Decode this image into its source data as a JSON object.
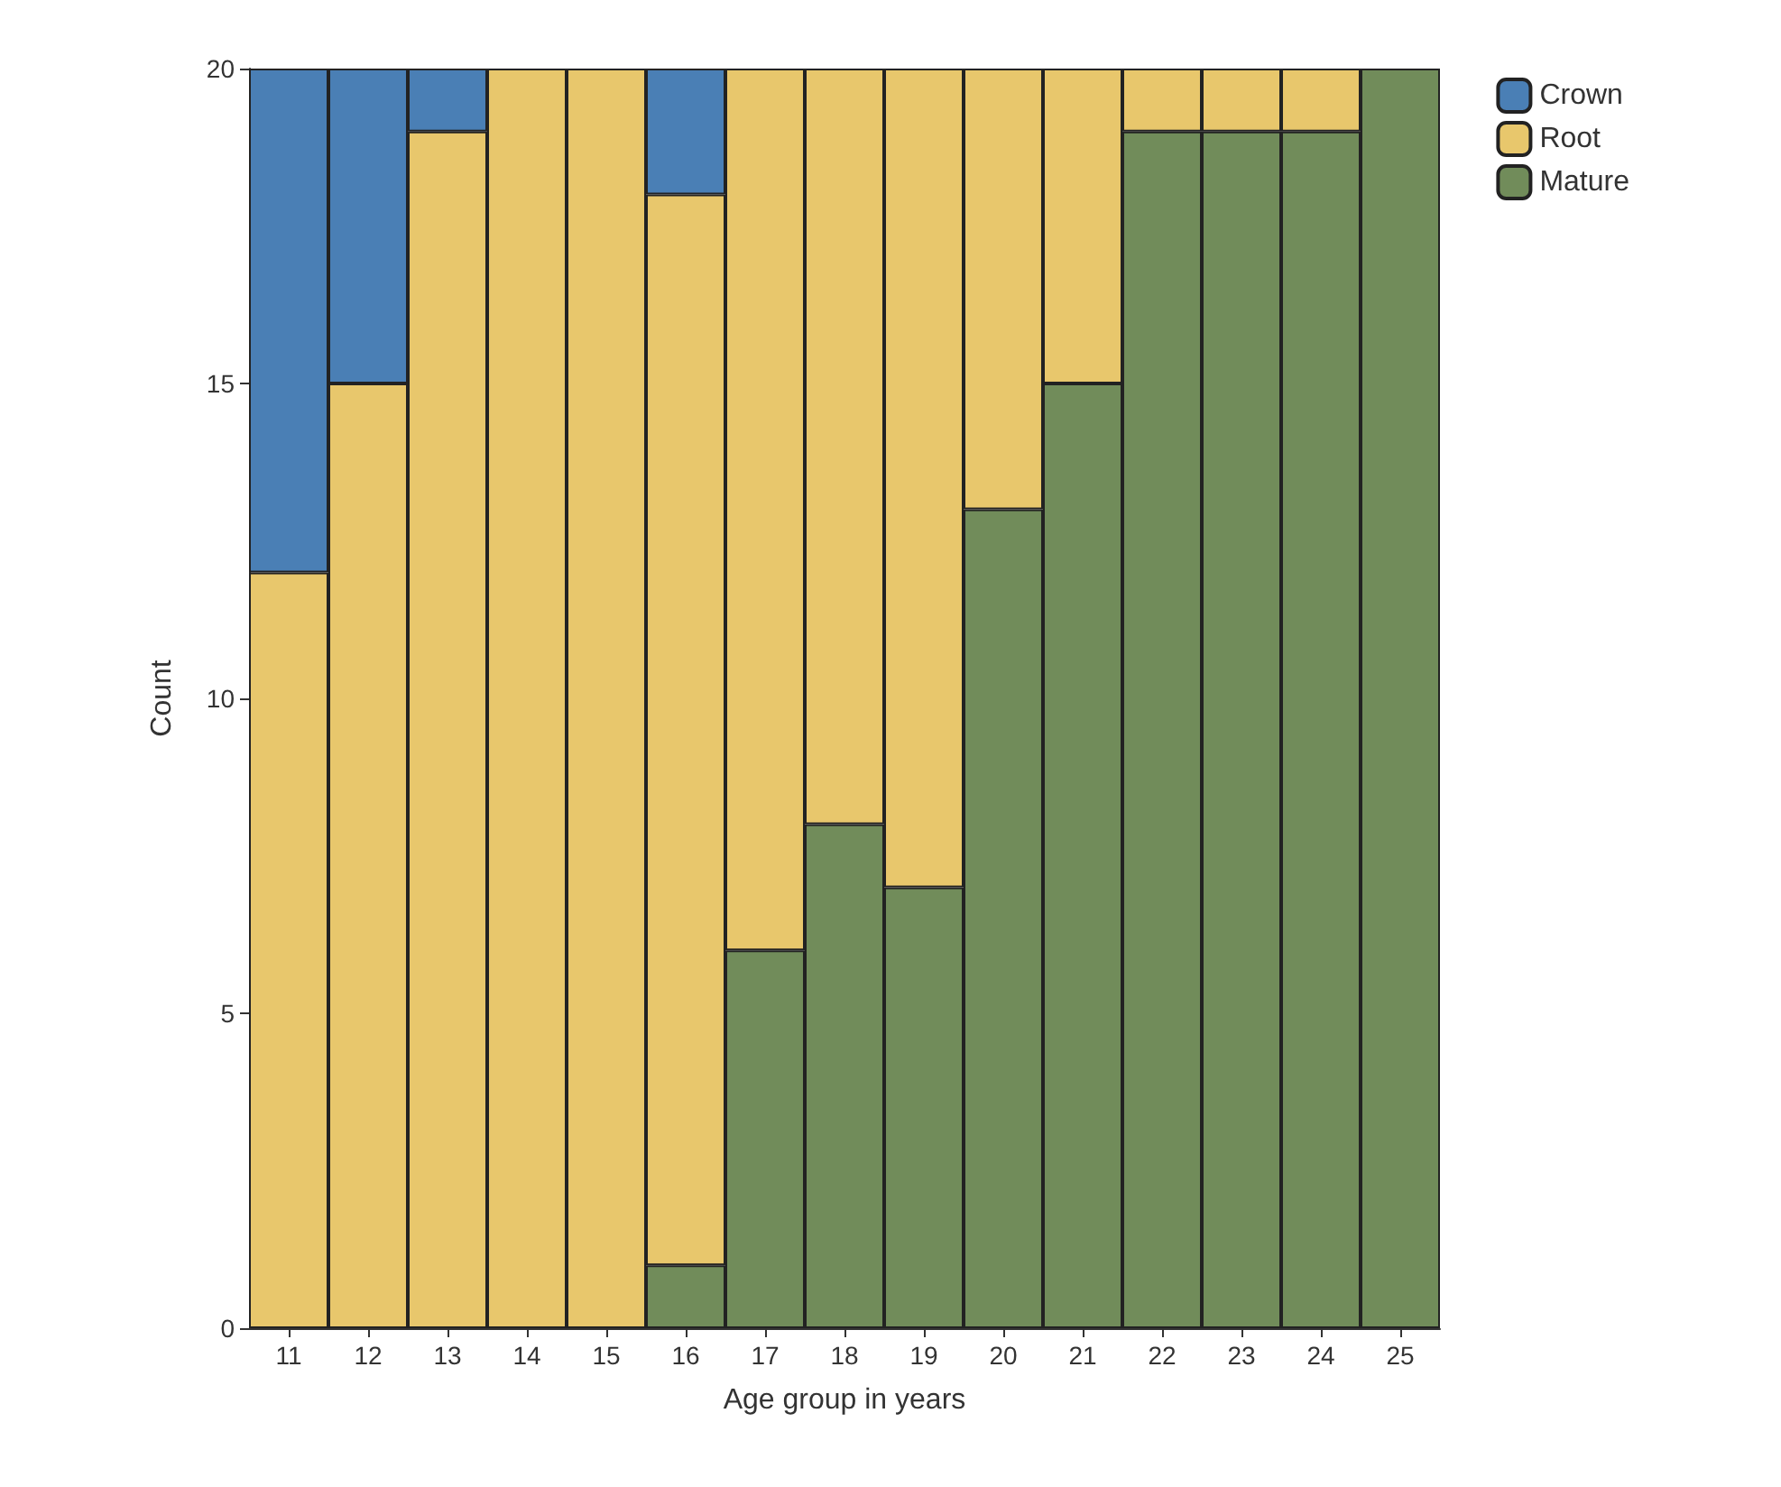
{
  "chart_data": {
    "type": "bar",
    "stacked": true,
    "xlabel": "Age group in years",
    "ylabel": "Count",
    "categories": [
      "11",
      "12",
      "13",
      "14",
      "15",
      "16",
      "17",
      "18",
      "19",
      "20",
      "21",
      "22",
      "23",
      "24",
      "25"
    ],
    "series": [
      {
        "name": "Mature",
        "color": "#718c5a",
        "values": [
          0,
          0,
          0,
          0,
          0,
          1,
          6,
          8,
          7,
          13,
          15,
          19,
          19,
          19,
          20
        ]
      },
      {
        "name": "Root",
        "color": "#e8c76c",
        "values": [
          12,
          15,
          19,
          20,
          20,
          17,
          14,
          12,
          13,
          7,
          5,
          1,
          1,
          1,
          0
        ]
      },
      {
        "name": "Crown",
        "color": "#4a7fb5",
        "values": [
          8,
          5,
          1,
          0,
          0,
          2,
          0,
          0,
          0,
          0,
          0,
          0,
          0,
          0,
          0
        ]
      }
    ],
    "ylim": [
      0,
      20
    ],
    "yticks": [
      0,
      5,
      10,
      15,
      20
    ],
    "grid": false,
    "legend": "top right"
  }
}
